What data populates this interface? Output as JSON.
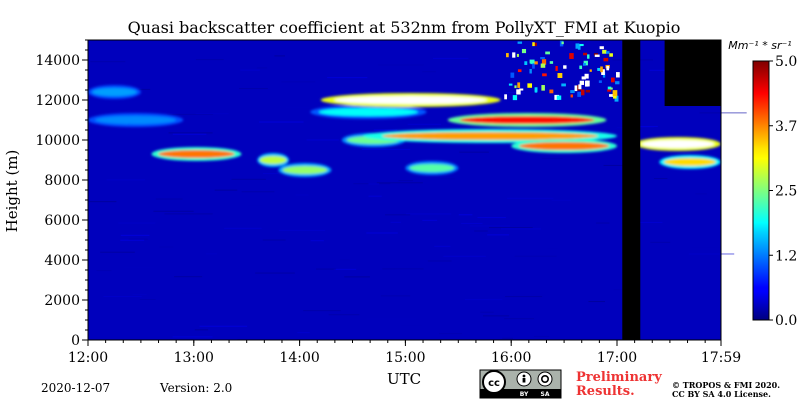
{
  "chart_data": {
    "type": "heatmap",
    "title": "Quasi backscatter coefficient at 532nm from PollyXT_FMI at Kuopio",
    "xlabel": "UTC",
    "ylabel": "Height (m)",
    "x_ticks": [
      "12:00",
      "13:00",
      "14:00",
      "15:00",
      "16:00",
      "17:00",
      "17:59"
    ],
    "x_range_hours": [
      12.0,
      17.983
    ],
    "y_ticks": [
      0,
      2000,
      4000,
      6000,
      8000,
      10000,
      12000,
      14000
    ],
    "y_range": [
      0,
      15000
    ],
    "colorbar": {
      "unit": "Mm⁻¹ * sr⁻¹",
      "range": [
        0.0,
        5.0
      ],
      "tick_labels": [
        "0.0",
        "1.2",
        "2.5",
        "3.7",
        "5.0"
      ],
      "tick_values": [
        0.0,
        1.25,
        2.5,
        3.75,
        5.0
      ],
      "colormap": "jet",
      "over_color": "#ffffff"
    },
    "background_value": 0.3,
    "cloud_layers": [
      {
        "start": 12.0,
        "end": 12.5,
        "height": 12400,
        "value": 1.4
      },
      {
        "start": 12.0,
        "end": 12.9,
        "height": 11000,
        "value": 1.3
      },
      {
        "start": 12.6,
        "end": 13.45,
        "height": 9300,
        "value": 3.8
      },
      {
        "start": 13.6,
        "end": 13.9,
        "height": 9000,
        "value": 2.8
      },
      {
        "start": 13.8,
        "end": 14.3,
        "height": 8500,
        "value": 2.6
      },
      {
        "start": 14.1,
        "end": 15.2,
        "height": 11400,
        "value": 1.9
      },
      {
        "start": 14.2,
        "end": 15.9,
        "height": 12000,
        "value": 5.5
      },
      {
        "start": 14.4,
        "end": 15.0,
        "height": 10000,
        "value": 2.4
      },
      {
        "start": 15.0,
        "end": 15.5,
        "height": 8600,
        "value": 2.3
      },
      {
        "start": 14.6,
        "end": 17.0,
        "height": 10200,
        "value": 3.6
      },
      {
        "start": 15.4,
        "end": 16.9,
        "height": 11000,
        "value": 4.3
      },
      {
        "start": 16.0,
        "end": 17.0,
        "height": 9700,
        "value": 3.8
      },
      {
        "start": 17.17,
        "end": 17.98,
        "height": 9800,
        "value": 5.5
      },
      {
        "start": 17.4,
        "end": 17.98,
        "height": 8900,
        "value": 3.3
      }
    ],
    "no_data_periods": [
      {
        "start": 17.05,
        "end": 17.22,
        "height_min": 0,
        "height_max": 15000
      },
      {
        "start": 17.45,
        "end": 17.98,
        "height_min": 11700,
        "height_max": 15000
      }
    ],
    "noisy_region": {
      "start": 15.9,
      "end": 17.0,
      "height_min": 12200,
      "height_max": 15000
    }
  },
  "footer": {
    "date": "2020-12-07",
    "version": "Version: 2.0",
    "preliminary_line1": "Preliminary",
    "preliminary_line2": "Results.",
    "copyright_line1": "© TROPOS & FMI 2020.",
    "copyright_line2": "CC BY SA 4.0 License.",
    "license_badge": [
      "cc",
      "BY",
      "SA"
    ]
  },
  "colors": {
    "preliminary": "#ee3333",
    "no_data": "#000000"
  }
}
